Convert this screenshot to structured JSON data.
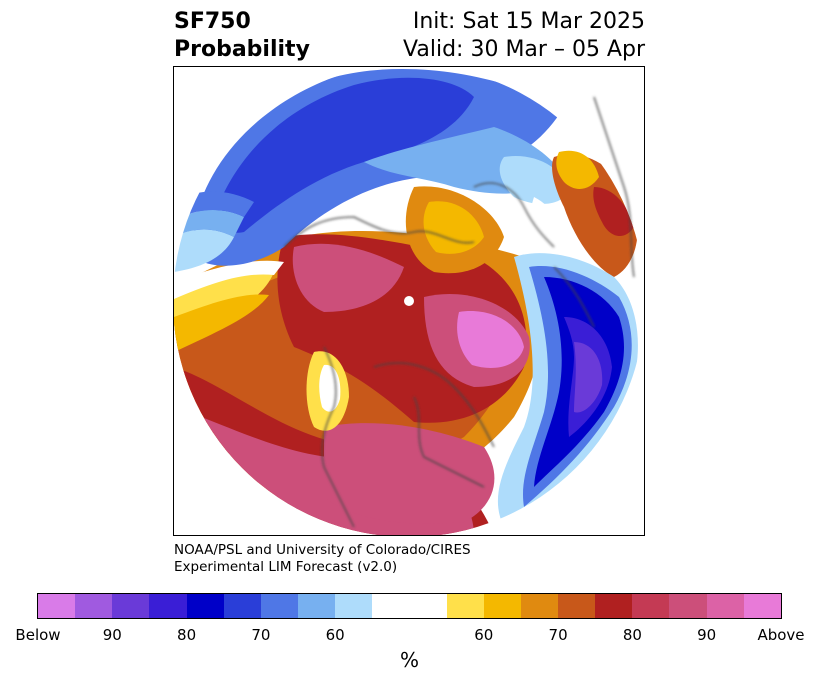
{
  "title": {
    "variable": "SF750",
    "product": "Probability",
    "init": "Init: Sat 15 Mar 2025",
    "valid": "Valid: 30 Mar – 05 Apr"
  },
  "credit": {
    "line1": "NOAA/PSL and University of Colorado/CIRES",
    "line2": "Experimental LIM Forecast (v2.0)"
  },
  "colorbar": {
    "unit": "%",
    "ticks": [
      "Below",
      "90",
      "80",
      "70",
      "60",
      "60",
      "70",
      "80",
      "90",
      "Above"
    ],
    "below_colors": [
      "#d97be8",
      "#a05ae0",
      "#6a3ad8",
      "#3a1ed6",
      "#0000c8",
      "#2a3ed8",
      "#4f77e6",
      "#77b0f0",
      "#aedcfb"
    ],
    "neutral_color": "#ffffff",
    "above_colors": [
      "#ffe04a",
      "#f4b800",
      "#e08a10",
      "#c8581a",
      "#b02020",
      "#c43a54",
      "#cc4f7a",
      "#dc62a6",
      "#e87ad8"
    ]
  }
}
